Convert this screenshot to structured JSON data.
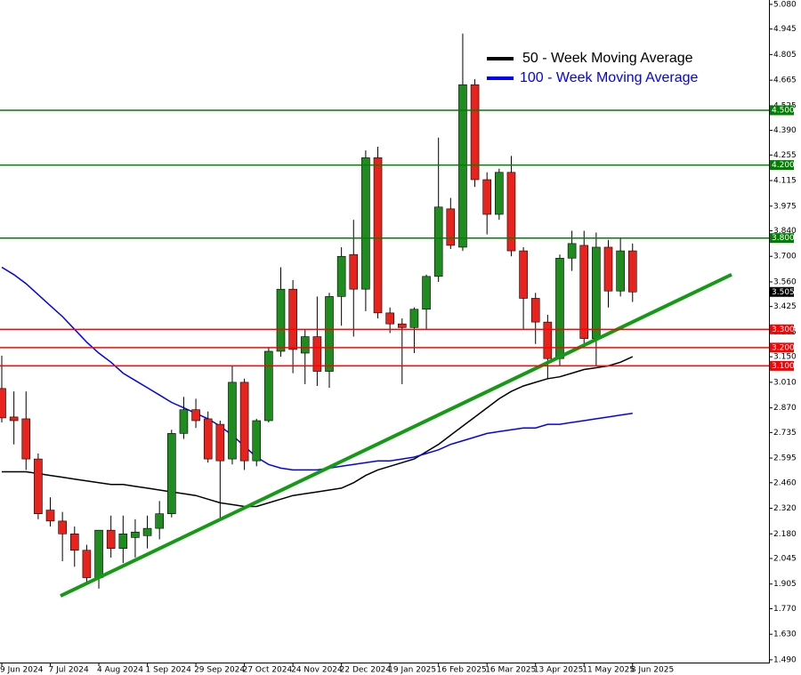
{
  "chart_data": {
    "type": "candlestick",
    "categories": [
      "9 Jun 2024",
      null,
      null,
      null,
      "7 Jul 2024",
      null,
      null,
      null,
      "4 Aug 2024",
      null,
      null,
      null,
      "1 Sep 2024",
      null,
      null,
      null,
      "29 Sep 2024",
      null,
      null,
      null,
      "27 Oct 2024",
      null,
      null,
      null,
      "24 Nov 2024",
      null,
      null,
      null,
      "22 Dec 2024",
      null,
      null,
      null,
      "19 Jan 2025",
      null,
      null,
      null,
      "16 Feb 2025",
      null,
      null,
      null,
      "16 Mar 2025",
      null,
      null,
      null,
      "13 Apr 2025",
      null,
      null,
      null,
      "11 May 2025",
      null,
      null,
      null,
      "8 Jun 2025"
    ],
    "open": [
      2.976,
      2.82,
      2.81,
      2.59,
      2.31,
      2.25,
      2.18,
      2.09,
      1.94,
      2.2,
      2.1,
      2.16,
      2.17,
      2.21,
      2.29,
      2.73,
      2.86,
      2.81,
      2.78,
      2.59,
      3.01,
      2.58,
      2.8,
      3.18,
      3.52,
      3.17,
      3.26,
      3.07,
      3.48,
      3.71,
      3.52,
      4.24,
      3.39,
      3.33,
      3.31,
      3.41,
      3.59,
      3.96,
      3.75,
      4.64,
      4.12,
      3.93,
      4.16,
      3.73,
      3.47,
      3.34,
      3.14,
      3.69,
      3.76,
      3.25,
      3.75,
      3.51,
      3.73
    ],
    "high": [
      3.156,
      2.96,
      2.96,
      2.62,
      2.38,
      2.3,
      2.22,
      2.12,
      2.2,
      2.28,
      2.28,
      2.26,
      2.28,
      2.36,
      2.75,
      2.93,
      2.92,
      2.85,
      2.8,
      3.1,
      3.03,
      2.81,
      3.2,
      3.64,
      3.57,
      3.3,
      3.48,
      3.5,
      3.75,
      3.9,
      4.28,
      4.3,
      3.42,
      3.36,
      3.42,
      3.6,
      4.35,
      4.02,
      4.92,
      4.67,
      4.16,
      4.18,
      4.25,
      3.75,
      3.5,
      3.38,
      3.71,
      3.84,
      3.84,
      3.83,
      3.79,
      3.8,
      3.77
    ],
    "low": [
      2.79,
      2.67,
      2.53,
      2.26,
      2.22,
      2.03,
      2.0,
      1.91,
      1.88,
      2.05,
      2.02,
      2.05,
      2.1,
      2.15,
      2.27,
      2.7,
      2.76,
      2.57,
      2.25,
      2.56,
      2.53,
      2.55,
      2.79,
      3.15,
      3.06,
      3.0,
      2.99,
      2.98,
      3.32,
      3.26,
      3.4,
      3.36,
      3.28,
      3.0,
      3.17,
      3.3,
      3.56,
      3.74,
      3.73,
      4.08,
      3.82,
      3.9,
      3.7,
      3.3,
      3.22,
      3.03,
      3.1,
      3.62,
      3.22,
      3.1,
      3.42,
      3.48,
      3.45
    ],
    "close": [
      2.815,
      2.8,
      2.59,
      2.29,
      2.25,
      2.18,
      2.09,
      1.94,
      2.2,
      2.1,
      2.18,
      2.19,
      2.21,
      2.29,
      2.73,
      2.86,
      2.8,
      2.59,
      2.58,
      3.01,
      2.58,
      2.8,
      3.18,
      3.52,
      3.19,
      3.26,
      3.07,
      3.48,
      3.7,
      3.52,
      4.24,
      3.39,
      3.33,
      3.31,
      3.41,
      3.59,
      3.97,
      3.76,
      4.64,
      4.12,
      3.93,
      4.16,
      3.73,
      3.47,
      3.34,
      3.14,
      3.69,
      3.77,
      3.25,
      3.75,
      3.51,
      3.73,
      3.505
    ],
    "up_color": "#1e8c1e",
    "down_color": "#e8231e",
    "series": [
      {
        "name": "50 - Week Moving Average",
        "color": "#000000",
        "values": [
          2.52,
          2.52,
          2.52,
          2.51,
          2.5,
          2.49,
          2.48,
          2.47,
          2.46,
          2.45,
          2.45,
          2.44,
          2.43,
          2.42,
          2.41,
          2.4,
          2.39,
          2.37,
          2.35,
          2.34,
          2.33,
          2.33,
          2.35,
          2.37,
          2.39,
          2.4,
          2.41,
          2.42,
          2.43,
          2.46,
          2.5,
          2.53,
          2.55,
          2.57,
          2.59,
          2.63,
          2.67,
          2.72,
          2.77,
          2.82,
          2.87,
          2.92,
          2.96,
          2.99,
          3.01,
          3.03,
          3.04,
          3.06,
          3.08,
          3.09,
          3.1,
          3.12,
          3.15
        ]
      },
      {
        "name": "100 - Week Moving Average",
        "color": "#0000ff",
        "values": [
          3.64,
          3.6,
          3.55,
          3.49,
          3.43,
          3.37,
          3.3,
          3.23,
          3.17,
          3.12,
          3.06,
          3.02,
          2.98,
          2.94,
          2.9,
          2.87,
          2.84,
          2.81,
          2.77,
          2.72,
          2.66,
          2.6,
          2.56,
          2.54,
          2.53,
          2.53,
          2.53,
          2.54,
          2.55,
          2.56,
          2.57,
          2.58,
          2.58,
          2.59,
          2.6,
          2.62,
          2.64,
          2.67,
          2.69,
          2.71,
          2.73,
          2.74,
          2.75,
          2.76,
          2.76,
          2.78,
          2.78,
          2.79,
          2.8,
          2.81,
          2.82,
          2.83,
          2.84
        ]
      }
    ],
    "ylim": [
      1.475,
      5.104
    ],
    "yticks": [
      {
        "value": 5.08,
        "label": "5.080"
      },
      {
        "value": 4.945,
        "label": "4.945"
      },
      {
        "value": 4.805,
        "label": "4.805"
      },
      {
        "value": 4.665,
        "label": "4.665"
      },
      {
        "value": 4.525,
        "label": "4.525"
      },
      {
        "value": 4.39,
        "label": "4.390"
      },
      {
        "value": 4.255,
        "label": "4.255"
      },
      {
        "value": 4.115,
        "label": "4.115"
      },
      {
        "value": 3.975,
        "label": "3.975"
      },
      {
        "value": 3.84,
        "label": "3.840"
      },
      {
        "value": 3.7,
        "label": "3.700"
      },
      {
        "value": 3.56,
        "label": "3.560"
      },
      {
        "value": 3.425,
        "label": "3.425"
      },
      {
        "value": 3.285,
        "label": "3.285"
      },
      {
        "value": 3.15,
        "label": "3.150"
      },
      {
        "value": 3.01,
        "label": "3.010"
      },
      {
        "value": 2.87,
        "label": "2.870"
      },
      {
        "value": 2.735,
        "label": "2.735"
      },
      {
        "value": 2.595,
        "label": "2.595"
      },
      {
        "value": 2.46,
        "label": "2.460"
      },
      {
        "value": 2.32,
        "label": "2.320"
      },
      {
        "value": 2.18,
        "label": "2.180"
      },
      {
        "value": 2.045,
        "label": "2.045"
      },
      {
        "value": 1.905,
        "label": "1.905"
      },
      {
        "value": 1.77,
        "label": "1.770"
      },
      {
        "value": 1.63,
        "label": "1.630"
      },
      {
        "value": 1.49,
        "label": "1.490"
      }
    ],
    "levels": [
      {
        "value": 4.5,
        "label": "4.500",
        "color": "#008000"
      },
      {
        "value": 4.2,
        "label": "4.200",
        "color": "#008000"
      },
      {
        "value": 3.8,
        "label": "3.800",
        "color": "#008000"
      },
      {
        "value": 3.3,
        "label": "3.300",
        "color": "#ff0000"
      },
      {
        "value": 3.2,
        "label": "3.200",
        "color": "#ff0000"
      },
      {
        "value": 3.1,
        "label": "3.100",
        "color": "#ff0000"
      }
    ],
    "last_price": {
      "value": 3.505,
      "label": "3.505"
    },
    "trendline": {
      "color": "#159a15",
      "values": [
        1.84,
        3.6
      ]
    }
  }
}
